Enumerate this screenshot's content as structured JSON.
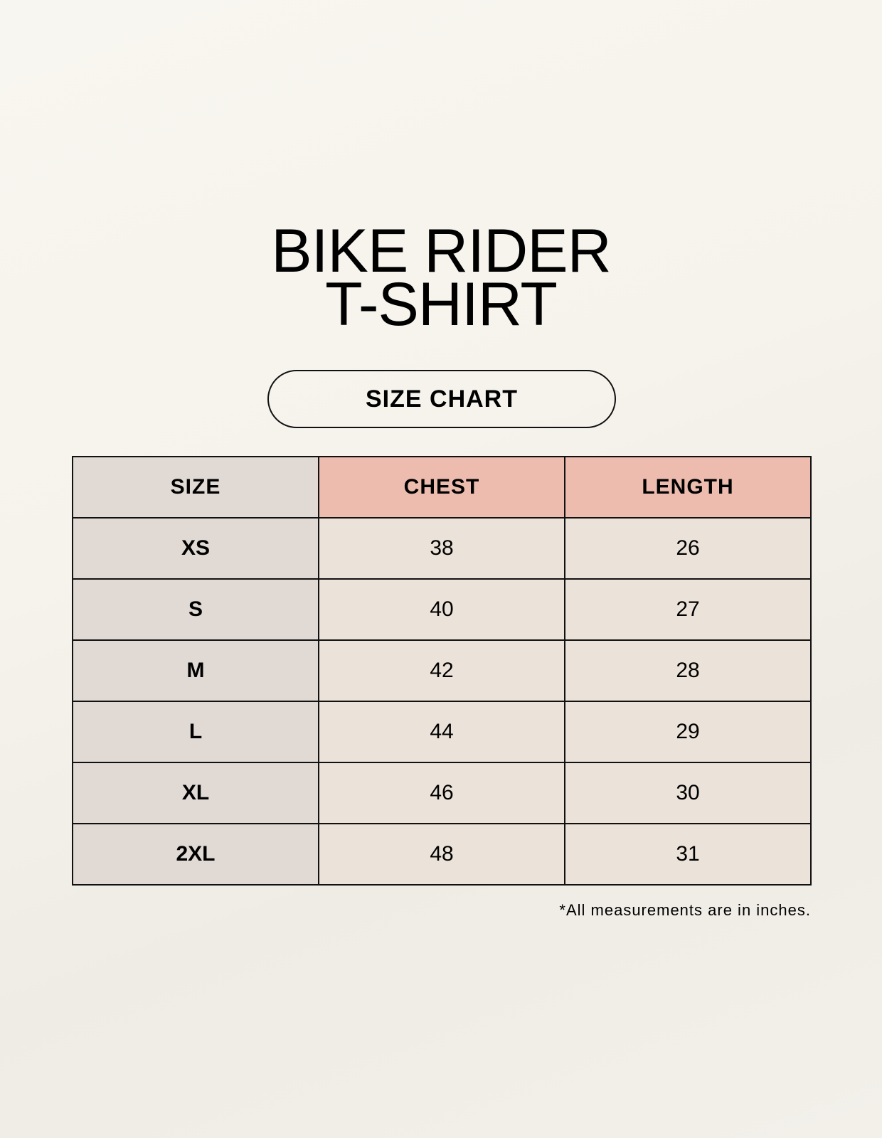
{
  "title": {
    "line1": "BIKE RIDER",
    "line2": "T-SHIRT"
  },
  "badge": "SIZE CHART",
  "table": {
    "headers": [
      "SIZE",
      "CHEST",
      "LENGTH"
    ],
    "rows": [
      [
        "XS",
        "38",
        "26"
      ],
      [
        "S",
        "40",
        "27"
      ],
      [
        "M",
        "42",
        "28"
      ],
      [
        "L",
        "44",
        "29"
      ],
      [
        "XL",
        "46",
        "30"
      ],
      [
        "2XL",
        "48",
        "31"
      ]
    ]
  },
  "footnote": "*All measurements are in inches.",
  "colors": {
    "size_column": "#e0d9d4",
    "header_accent": "#edbcaf",
    "value_cells": "#ebe3d9"
  }
}
